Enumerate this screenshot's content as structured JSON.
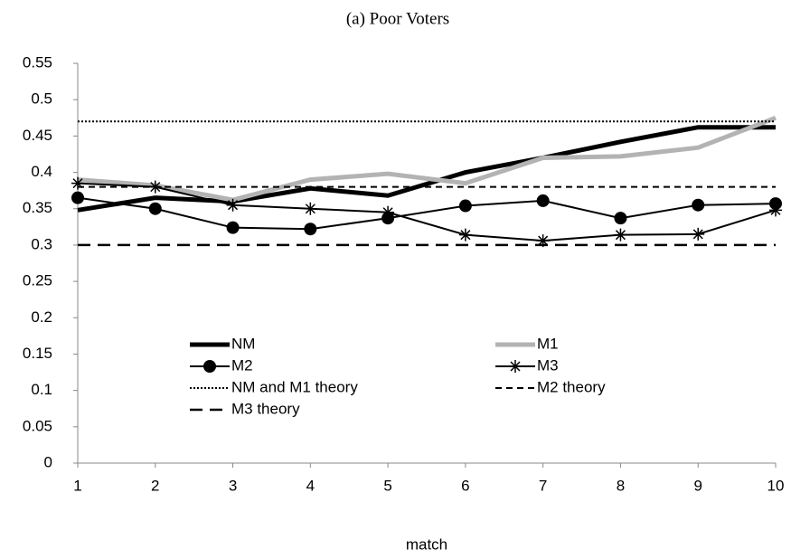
{
  "chart_data": {
    "type": "line",
    "title": "(a) Poor Voters",
    "xlabel": "match",
    "x": [
      1,
      2,
      3,
      4,
      5,
      6,
      7,
      8,
      9,
      10
    ],
    "xlim": [
      1,
      10
    ],
    "xticks": [
      1,
      2,
      3,
      4,
      5,
      6,
      7,
      8,
      9,
      10
    ],
    "ylim": [
      0,
      0.55
    ],
    "yticks": [
      0,
      0.05,
      0.1,
      0.15,
      0.2,
      0.25,
      0.3,
      0.35,
      0.4,
      0.45,
      0.5,
      0.55
    ],
    "grid": false,
    "legend": "inside",
    "series": [
      {
        "name": "NM",
        "color": "#000000",
        "width": 5,
        "dash": "solid",
        "marker": "none",
        "values": [
          0.348,
          0.365,
          0.36,
          0.378,
          0.368,
          0.4,
          0.42,
          0.442,
          0.462,
          0.462
        ]
      },
      {
        "name": "M1",
        "color": "#b3b3b3",
        "width": 5,
        "dash": "solid",
        "marker": "none",
        "values": [
          0.39,
          0.382,
          0.362,
          0.39,
          0.398,
          0.385,
          0.42,
          0.422,
          0.434,
          0.475
        ]
      },
      {
        "name": "M2",
        "color": "#000000",
        "width": 2,
        "dash": "solid",
        "marker": "circle",
        "values": [
          0.365,
          0.35,
          0.324,
          0.322,
          0.337,
          0.354,
          0.361,
          0.337,
          0.355,
          0.357
        ]
      },
      {
        "name": "M3",
        "color": "#000000",
        "width": 2,
        "dash": "solid",
        "marker": "star",
        "values": [
          0.385,
          0.38,
          0.355,
          0.35,
          0.345,
          0.314,
          0.306,
          0.314,
          0.315,
          0.348
        ]
      },
      {
        "name": "NM and M1 theory",
        "color": "#000000",
        "width": 2,
        "dash": "dotted",
        "marker": "none",
        "values": [
          0.47,
          0.47,
          0.47,
          0.47,
          0.47,
          0.47,
          0.47,
          0.47,
          0.47,
          0.47
        ]
      },
      {
        "name": "M2 theory",
        "color": "#000000",
        "width": 2,
        "dash": "dashed",
        "marker": "none",
        "values": [
          0.38,
          0.38,
          0.38,
          0.38,
          0.38,
          0.38,
          0.38,
          0.38,
          0.38,
          0.38
        ]
      },
      {
        "name": "M3 theory",
        "color": "#000000",
        "width": 2.5,
        "dash": "longdash",
        "marker": "none",
        "values": [
          0.3,
          0.3,
          0.3,
          0.3,
          0.3,
          0.3,
          0.3,
          0.3,
          0.3,
          0.3
        ]
      }
    ]
  }
}
